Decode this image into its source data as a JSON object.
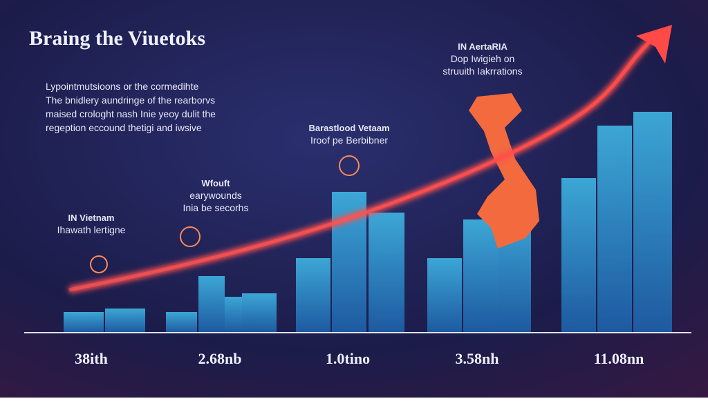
{
  "header": {
    "title": "Braing the Viuetoks"
  },
  "intro": {
    "lines": [
      "Lypointmutsioons or the cormedihte",
      "The bnidlery aundringe of the rearborvs",
      "maised crologht nash Inie yeoy dulit the",
      "regeption eccound thetigi and iwsive"
    ]
  },
  "annotations": [
    {
      "lines": [
        "IN Vietnam",
        "Ihawath lertigne"
      ]
    },
    {
      "lines": [
        "Wfouft",
        "earywounds",
        "Inia be secorhs"
      ]
    },
    {
      "lines": [
        "Barastlood Vetaam",
        "Iroof pe Berbibner"
      ]
    },
    {
      "lines": [
        "IN AertaRIA",
        "Dop Iwigieh on",
        "struuith Iakrrations"
      ]
    }
  ],
  "milestones": {
    "labels": [
      "38ith",
      "2.68nb",
      "1.0tino",
      "3.58nh",
      "11.08nn"
    ]
  }
}
